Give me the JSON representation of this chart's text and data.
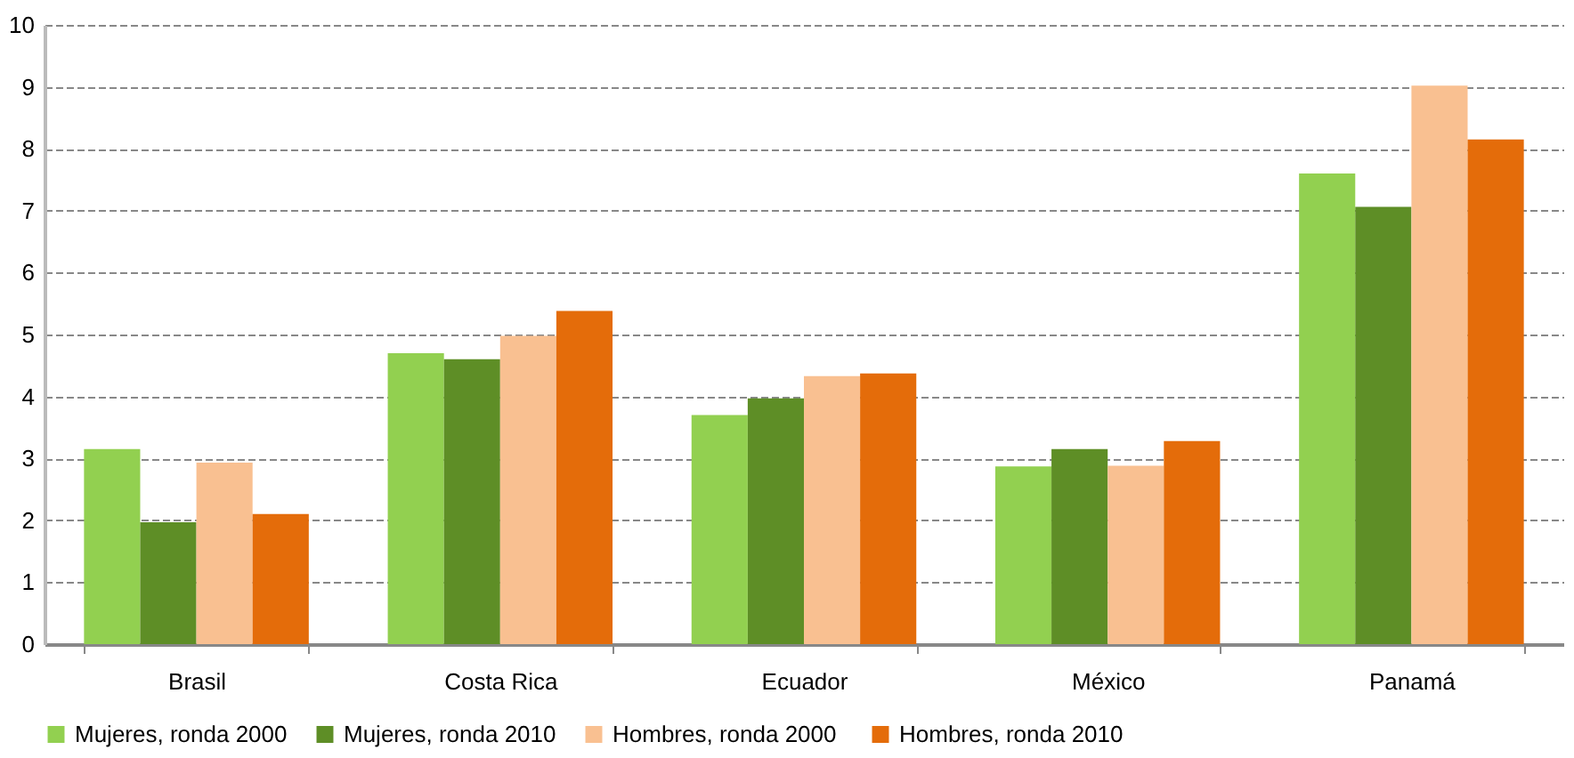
{
  "chart_data": {
    "type": "bar",
    "categories": [
      "Brasil",
      "Costa Rica",
      "Ecuador",
      "México",
      "Panamá"
    ],
    "series": [
      {
        "name": "Mujeres, ronda 2000",
        "color": "#92d050",
        "values": [
          3.15,
          4.7,
          3.7,
          2.87,
          7.6
        ]
      },
      {
        "name": "Mujeres, ronda 2010",
        "color": "#5e8e26",
        "values": [
          1.97,
          4.6,
          3.97,
          3.15,
          7.06
        ]
      },
      {
        "name": "Hombres,  ronda 2000",
        "color": "#f9c091",
        "values": [
          2.93,
          4.98,
          4.33,
          2.88,
          9.02
        ]
      },
      {
        "name": "Hombres,  ronda 2010",
        "color": "#e46c0a",
        "values": [
          2.1,
          5.38,
          4.37,
          3.28,
          8.15
        ]
      }
    ],
    "ylim": [
      0,
      10
    ],
    "yticks": [
      0,
      1,
      2,
      3,
      4,
      5,
      6,
      7,
      8,
      9,
      10
    ],
    "grid": "y",
    "legend": "bottom"
  }
}
